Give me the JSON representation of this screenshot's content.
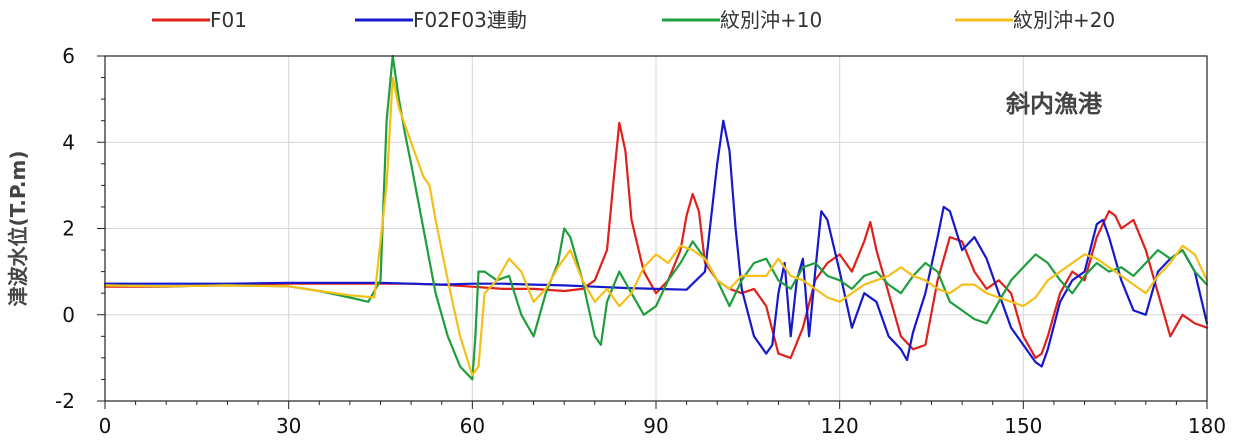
{
  "chart_data": {
    "type": "line",
    "title": "",
    "xlabel": "",
    "ylabel": "津波水位(T.P.m)",
    "annotation": "斜内漁港",
    "xlim": [
      0,
      180
    ],
    "ylim": [
      -2,
      6
    ],
    "xticks": [
      0,
      30,
      60,
      90,
      120,
      150,
      180
    ],
    "yticks": [
      -2,
      0,
      2,
      4,
      6
    ],
    "grid": true,
    "legend_position": "top",
    "series": [
      {
        "name": "F01",
        "color": "#e0201b",
        "x": [
          0,
          10,
          20,
          30,
          40,
          45,
          50,
          55,
          60,
          63,
          65,
          70,
          75,
          78,
          80,
          82,
          83,
          84,
          85,
          86,
          88,
          90,
          92,
          94,
          95,
          96,
          97,
          98,
          100,
          102,
          104,
          106,
          108,
          110,
          112,
          114,
          116,
          118,
          120,
          122,
          124,
          125,
          126,
          128,
          130,
          132,
          134,
          136,
          138,
          140,
          142,
          144,
          146,
          148,
          150,
          152,
          153,
          154,
          156,
          158,
          160,
          162,
          164,
          165,
          166,
          168,
          170,
          172,
          174,
          176,
          178,
          180
        ],
        "y": [
          0.65,
          0.65,
          0.7,
          0.72,
          0.72,
          0.72,
          0.72,
          0.7,
          0.65,
          0.62,
          0.6,
          0.6,
          0.55,
          0.6,
          0.8,
          1.5,
          3.0,
          4.45,
          3.8,
          2.2,
          1.0,
          0.5,
          0.8,
          1.5,
          2.3,
          2.8,
          2.4,
          1.2,
          0.8,
          0.6,
          0.5,
          0.6,
          0.2,
          -0.9,
          -1.0,
          -0.3,
          0.8,
          1.2,
          1.4,
          1.0,
          1.7,
          2.15,
          1.5,
          0.5,
          -0.5,
          -0.8,
          -0.7,
          0.8,
          1.8,
          1.7,
          1.0,
          0.6,
          0.8,
          0.5,
          -0.5,
          -1.0,
          -0.9,
          -0.5,
          0.5,
          1.0,
          0.8,
          1.8,
          2.4,
          2.3,
          2.0,
          2.2,
          1.5,
          0.5,
          -0.5,
          0.0,
          -0.2,
          -0.3
        ]
      },
      {
        "name": "F02F03連動",
        "color": "#1618cc",
        "x": [
          0,
          10,
          20,
          30,
          40,
          45,
          50,
          55,
          60,
          65,
          70,
          75,
          80,
          85,
          90,
          95,
          98,
          100,
          101,
          102,
          103,
          104,
          106,
          108,
          109,
          110,
          111,
          112,
          113,
          114,
          115,
          116,
          117,
          118,
          120,
          122,
          124,
          126,
          128,
          130,
          131,
          132,
          134,
          136,
          137,
          138,
          140,
          142,
          144,
          146,
          148,
          150,
          152,
          153,
          154,
          156,
          158,
          160,
          162,
          163,
          164,
          166,
          168,
          170,
          172,
          174,
          176,
          178,
          180
        ],
        "y": [
          0.72,
          0.72,
          0.72,
          0.74,
          0.74,
          0.74,
          0.72,
          0.7,
          0.72,
          0.72,
          0.7,
          0.68,
          0.65,
          0.62,
          0.6,
          0.58,
          1.0,
          3.5,
          4.5,
          3.8,
          2.0,
          0.6,
          -0.5,
          -0.9,
          -0.7,
          0.5,
          1.2,
          -0.5,
          0.8,
          1.3,
          -0.5,
          1.0,
          2.4,
          2.2,
          1.0,
          -0.3,
          0.5,
          0.3,
          -0.5,
          -0.8,
          -1.05,
          -0.4,
          0.5,
          1.8,
          2.5,
          2.4,
          1.5,
          1.8,
          1.3,
          0.5,
          -0.3,
          -0.7,
          -1.1,
          -1.2,
          -0.8,
          0.3,
          0.8,
          1.0,
          2.1,
          2.2,
          1.8,
          0.8,
          0.1,
          0.0,
          1.0,
          1.3,
          1.5,
          1.0,
          -0.2
        ]
      },
      {
        "name": "紋別沖+10",
        "color": "#1f9e3d",
        "x": [
          0,
          10,
          20,
          30,
          35,
          40,
          43,
          45,
          46,
          47,
          48,
          49,
          50,
          52,
          54,
          56,
          58,
          60,
          60.5,
          61,
          62,
          64,
          66,
          68,
          70,
          72,
          74,
          75,
          76,
          78,
          80,
          81,
          82,
          84,
          86,
          88,
          90,
          92,
          94,
          96,
          98,
          100,
          102,
          104,
          106,
          108,
          110,
          112,
          114,
          116,
          118,
          120,
          122,
          124,
          126,
          128,
          130,
          132,
          134,
          136,
          138,
          140,
          142,
          144,
          146,
          148,
          150,
          152,
          154,
          156,
          158,
          160,
          162,
          164,
          166,
          168,
          170,
          172,
          174,
          176,
          178,
          180
        ],
        "y": [
          0.68,
          0.66,
          0.68,
          0.66,
          0.55,
          0.4,
          0.3,
          0.8,
          4.5,
          6.0,
          5.0,
          4.2,
          3.5,
          2.0,
          0.5,
          -0.5,
          -1.2,
          -1.5,
          -0.5,
          1.0,
          1.0,
          0.8,
          0.9,
          0.0,
          -0.5,
          0.5,
          1.2,
          2.0,
          1.8,
          0.8,
          -0.5,
          -0.7,
          0.3,
          1.0,
          0.5,
          0.0,
          0.2,
          0.8,
          1.2,
          1.7,
          1.3,
          0.8,
          0.2,
          0.8,
          1.2,
          1.3,
          0.8,
          0.6,
          1.1,
          1.2,
          0.9,
          0.8,
          0.6,
          0.9,
          1.0,
          0.7,
          0.5,
          0.9,
          1.2,
          1.0,
          0.3,
          0.1,
          -0.1,
          -0.2,
          0.3,
          0.8,
          1.1,
          1.4,
          1.2,
          0.8,
          0.5,
          0.9,
          1.2,
          1.0,
          1.1,
          0.9,
          1.2,
          1.5,
          1.3,
          1.5,
          1.0,
          0.7
        ]
      },
      {
        "name": "紋別沖+20",
        "color": "#f5bf1a",
        "x": [
          0,
          10,
          20,
          30,
          35,
          40,
          44,
          46,
          47,
          48,
          50,
          52,
          53,
          54,
          56,
          58,
          60,
          61,
          62,
          64,
          66,
          68,
          70,
          72,
          74,
          76,
          78,
          80,
          82,
          84,
          86,
          88,
          90,
          92,
          94,
          96,
          98,
          100,
          102,
          104,
          106,
          108,
          110,
          112,
          114,
          116,
          118,
          120,
          122,
          124,
          126,
          128,
          130,
          132,
          134,
          136,
          138,
          140,
          142,
          144,
          146,
          148,
          150,
          152,
          154,
          156,
          158,
          160,
          162,
          164,
          166,
          168,
          170,
          172,
          174,
          176,
          178,
          180
        ],
        "y": [
          0.68,
          0.66,
          0.68,
          0.66,
          0.55,
          0.45,
          0.4,
          3.0,
          5.5,
          4.8,
          4.0,
          3.2,
          3.0,
          2.2,
          0.8,
          -0.5,
          -1.4,
          -1.2,
          0.5,
          0.8,
          1.3,
          1.0,
          0.3,
          0.6,
          1.1,
          1.5,
          0.8,
          0.3,
          0.6,
          0.2,
          0.5,
          1.1,
          1.4,
          1.2,
          1.6,
          1.5,
          1.3,
          0.8,
          0.6,
          0.9,
          0.9,
          0.9,
          1.3,
          0.9,
          0.8,
          0.6,
          0.4,
          0.3,
          0.5,
          0.7,
          0.8,
          0.9,
          1.1,
          0.9,
          0.8,
          0.6,
          0.5,
          0.7,
          0.7,
          0.5,
          0.4,
          0.3,
          0.2,
          0.4,
          0.8,
          1.0,
          1.2,
          1.4,
          1.3,
          1.1,
          0.9,
          0.7,
          0.5,
          0.9,
          1.2,
          1.6,
          1.4,
          0.8
        ]
      }
    ]
  }
}
